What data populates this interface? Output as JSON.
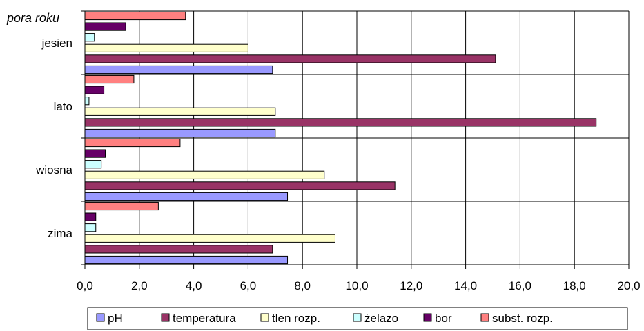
{
  "chart_data": {
    "type": "bar",
    "orientation": "horizontal",
    "y_axis_title": "pora roku",
    "categories": [
      "jesien",
      "lato",
      "wiosna",
      "zima"
    ],
    "series": [
      {
        "name": "pH",
        "color": "#9999ff",
        "values": [
          6.9,
          7.0,
          7.45,
          7.45
        ]
      },
      {
        "name": "temperatura",
        "color": "#993366",
        "values": [
          15.1,
          18.8,
          11.4,
          6.9
        ]
      },
      {
        "name": "tlen rozp.",
        "color": "#ffffcc",
        "values": [
          6.0,
          7.0,
          8.8,
          9.2
        ]
      },
      {
        "name": "żelazo",
        "color": "#ccffff",
        "values": [
          0.35,
          0.15,
          0.6,
          0.4
        ]
      },
      {
        "name": "bor",
        "color": "#660066",
        "values": [
          1.5,
          0.7,
          0.75,
          0.4
        ]
      },
      {
        "name": "subst. rozp.",
        "color": "#ff8080",
        "values": [
          3.7,
          1.8,
          3.5,
          2.7
        ]
      }
    ],
    "xlim": [
      0,
      20
    ],
    "x_ticks": [
      "0,0",
      "2,0",
      "4,0",
      "6,0",
      "8,0",
      "10,0",
      "12,0",
      "14,0",
      "16,0",
      "18,0",
      "20,0"
    ],
    "grid": true,
    "legend_position": "bottom"
  }
}
